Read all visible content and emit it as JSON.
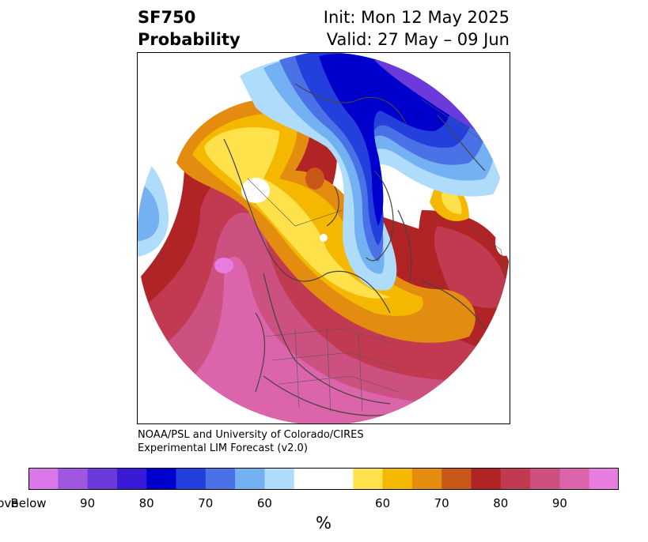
{
  "header": {
    "title_line1": "SF750",
    "title_line2": "Probability",
    "init": "Init: Mon 12 May 2025",
    "valid": "Valid: 27 May – 09 Jun"
  },
  "credit": {
    "line1": "NOAA/PSL and University of Colorado/CIRES",
    "line2": "Experimental LIM Forecast (v2.0)"
  },
  "colorbar": {
    "unit": "%",
    "colors": [
      "#d977e8",
      "#9f57e0",
      "#6c3adb",
      "#3a1ad6",
      "#0000cd",
      "#2340dc",
      "#4a72e6",
      "#74b1f3",
      "#afdcfb",
      "#ffffff",
      "#ffe14c",
      "#f5b800",
      "#e38c10",
      "#c95818",
      "#b02425",
      "#c23a52",
      "#cc5080",
      "#dc64aa",
      "#e87ce0"
    ],
    "ticks": [
      {
        "label": "Below"
      },
      {
        "label": "90"
      },
      {
        "label": "80"
      },
      {
        "label": "70"
      },
      {
        "label": "60"
      },
      {
        "label": "60"
      },
      {
        "label": "70"
      },
      {
        "label": "80"
      },
      {
        "label": "90"
      },
      {
        "label": "Above"
      }
    ]
  }
}
